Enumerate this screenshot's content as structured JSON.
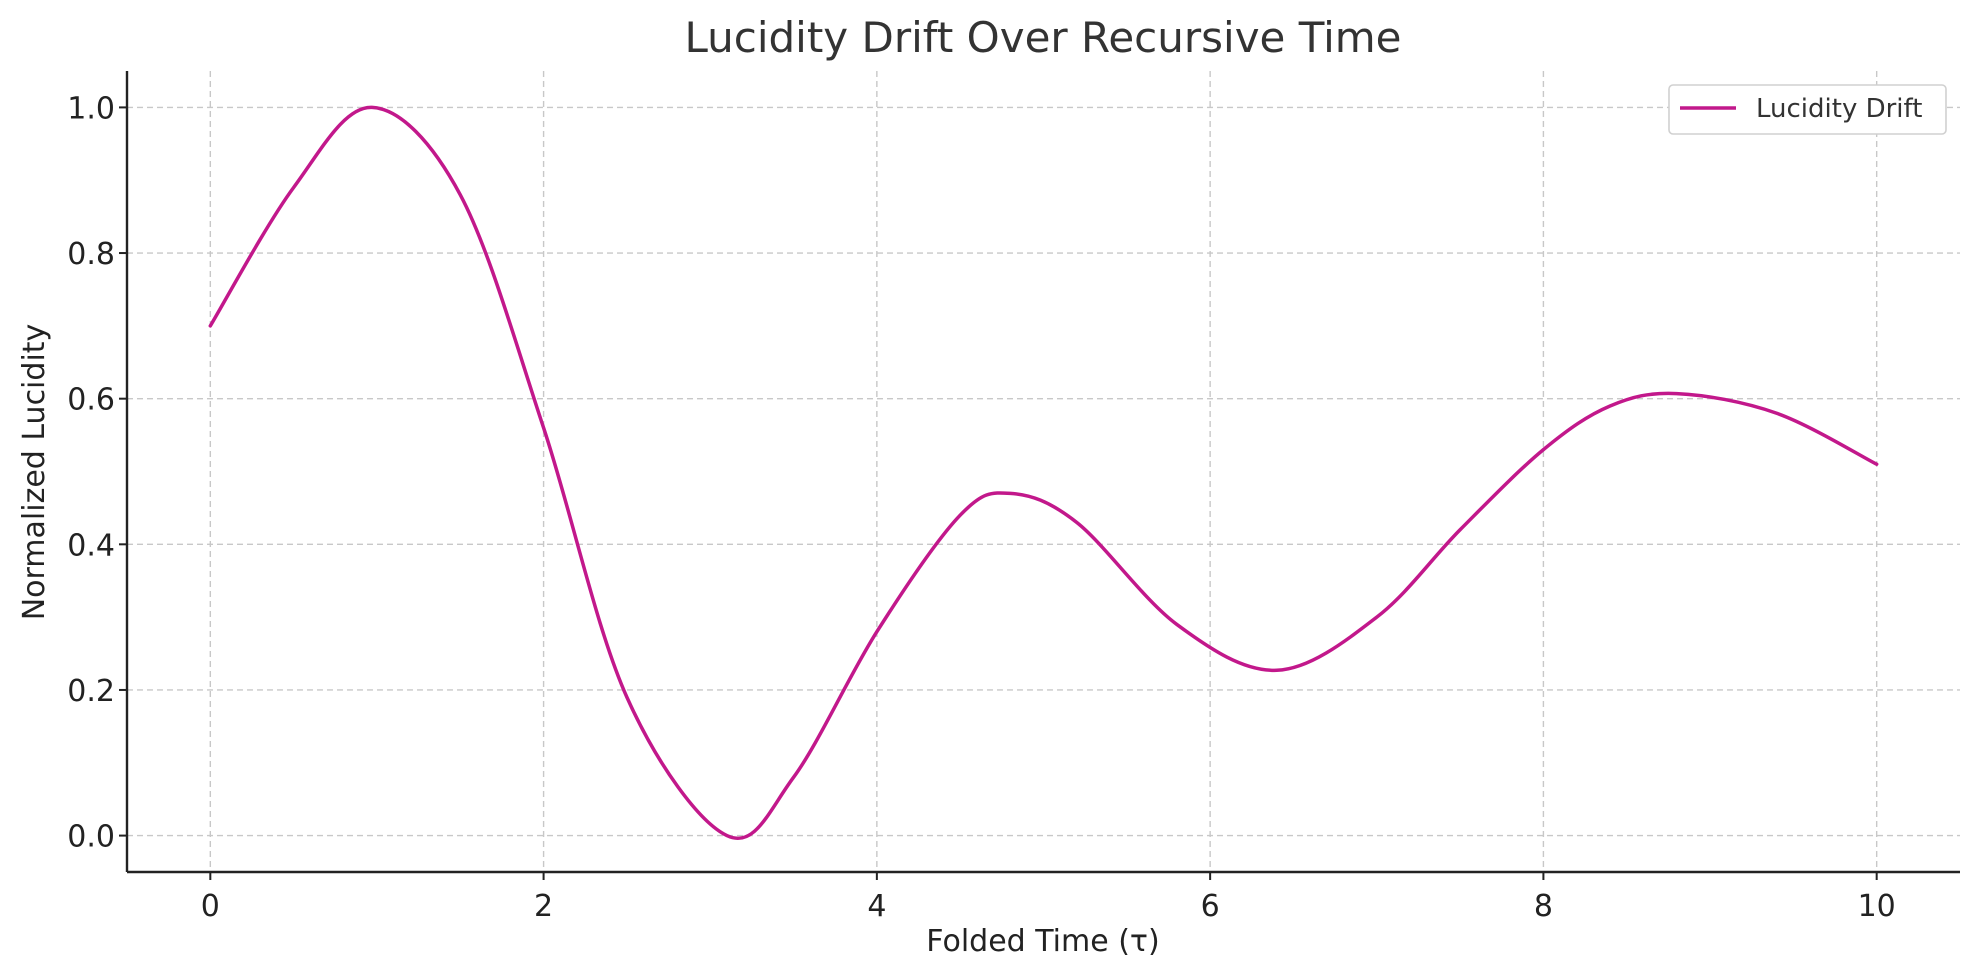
{
  "chart_data": {
    "type": "line",
    "title": "Lucidity Drift Over Recursive Time",
    "xlabel": "Folded Time (τ)",
    "ylabel": "Normalized Lucidity",
    "xlim": [
      -0.5,
      10.5
    ],
    "ylim": [
      -0.05,
      1.05
    ],
    "xticks": [
      0,
      2,
      4,
      6,
      8,
      10
    ],
    "xtick_labels": [
      "0",
      "2",
      "4",
      "6",
      "8",
      "10"
    ],
    "yticks": [
      0.0,
      0.2,
      0.4,
      0.6,
      0.8,
      1.0
    ],
    "ytick_labels": [
      "0.0",
      "0.2",
      "0.4",
      "0.6",
      "0.8",
      "1.0"
    ],
    "grid": true,
    "legend_position": "top-right",
    "series": [
      {
        "name": "Lucidity Drift",
        "color": "#c2188b",
        "x": [
          0,
          0.5,
          0.97,
          1.5,
          2.0,
          2.5,
          3.1,
          3.5,
          4.0,
          4.5,
          4.8,
          5.2,
          5.8,
          6.4,
          7.0,
          7.5,
          8.0,
          8.4,
          8.8,
          9.4,
          10.0
        ],
        "y": [
          0.7,
          0.89,
          1.0,
          0.88,
          0.56,
          0.19,
          0.0,
          0.08,
          0.28,
          0.44,
          0.47,
          0.43,
          0.29,
          0.227,
          0.3,
          0.42,
          0.53,
          0.59,
          0.607,
          0.58,
          0.51
        ]
      }
    ]
  }
}
